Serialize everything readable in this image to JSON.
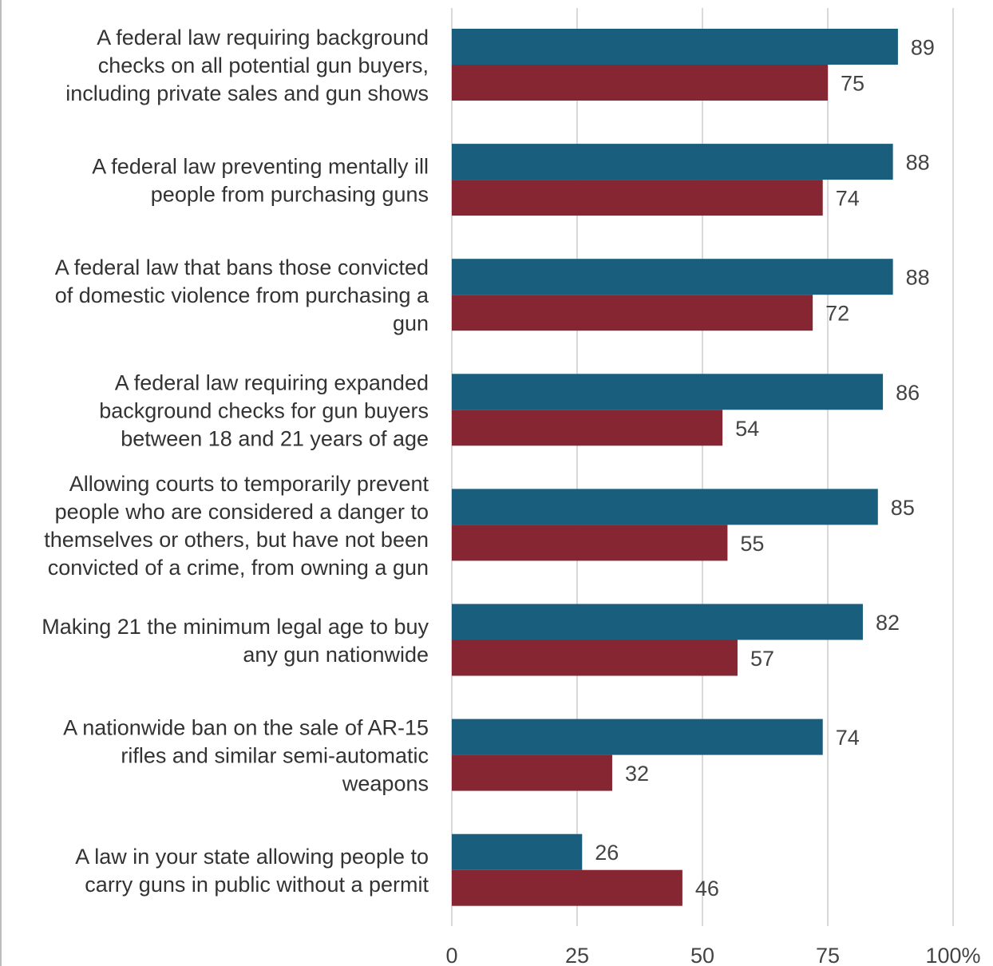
{
  "colors": {
    "series_1": "#195e7d",
    "series_2": "#862633",
    "grid": "#d9d9d9"
  },
  "chart_data": {
    "type": "bar",
    "orientation": "horizontal",
    "categories": [
      [
        "A federal law requiring background",
        "checks on all potential gun buyers,",
        "including private sales and gun shows"
      ],
      [
        "A federal law preventing mentally ill",
        "people from purchasing guns"
      ],
      [
        "A federal law that bans those convicted",
        "of domestic violence from purchasing a",
        "gun"
      ],
      [
        "A federal law requiring expanded",
        "background checks for gun buyers",
        "between 18 and 21 years of age"
      ],
      [
        "Allowing courts to temporarily prevent",
        "people who are considered a danger to",
        "themselves or others, but have not been",
        "convicted of a crime, from owning a gun"
      ],
      [
        "Making 21 the minimum legal age to buy",
        "any gun nationwide"
      ],
      [
        "A nationwide ban on the sale of AR-15",
        "rifles and similar semi-automatic",
        "weapons"
      ],
      [
        "A law in your state allowing people to",
        "carry guns in public without a permit"
      ]
    ],
    "series": [
      {
        "values": [
          89,
          88,
          88,
          86,
          85,
          82,
          74,
          26
        ]
      },
      {
        "values": [
          75,
          74,
          72,
          54,
          55,
          57,
          32,
          46
        ]
      }
    ],
    "xlim": [
      0,
      100
    ],
    "xticks": [
      "0",
      "25",
      "50",
      "75",
      "100%"
    ],
    "xtick_values": [
      0,
      25,
      50,
      75,
      100
    ],
    "grid": true
  }
}
